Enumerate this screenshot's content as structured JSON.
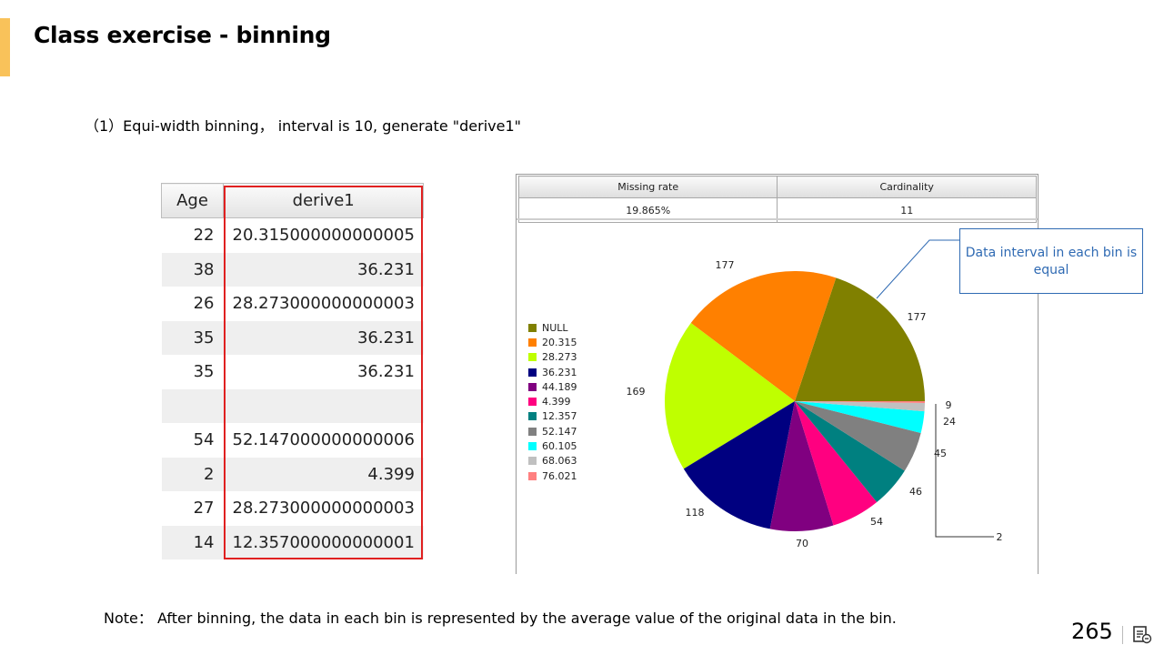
{
  "slide": {
    "title": "Class exercise - binning",
    "instruction": "（1）Equi-width binning，  interval is 10, generate \"derive1\"",
    "note": "Note：  After binning, the data in each bin is represented by the average value of the original data in the bin.",
    "page_number": "265",
    "accent_color": "#f9c25a"
  },
  "table": {
    "headers": [
      "Age",
      "derive1"
    ],
    "rows": [
      [
        "22",
        "20.315000000000005"
      ],
      [
        "38",
        "36.231"
      ],
      [
        "26",
        "28.273000000000003"
      ],
      [
        "35",
        "36.231"
      ],
      [
        "35",
        "36.231"
      ],
      [
        "",
        ""
      ],
      [
        "54",
        "52.147000000000006"
      ],
      [
        "2",
        "4.399"
      ],
      [
        "27",
        "28.273000000000003"
      ],
      [
        "14",
        "12.357000000000001"
      ]
    ],
    "highlight_color": "#e02020"
  },
  "stats": {
    "headers": [
      "Missing rate",
      "Cardinality"
    ],
    "values": [
      "19.865%",
      "11"
    ]
  },
  "callout": {
    "text": "Data interval in each bin is equal",
    "color": "#2f6ab3"
  },
  "chart_data": {
    "type": "pie",
    "categories": [
      "NULL",
      "20.315",
      "28.273",
      "36.231",
      "44.189",
      "4.399",
      "12.357",
      "52.147",
      "60.105",
      "68.063",
      "76.021"
    ],
    "values": [
      177,
      177,
      169,
      118,
      70,
      54,
      46,
      45,
      24,
      9,
      2
    ],
    "colors": [
      "#808000",
      "#ff8000",
      "#bfff00",
      "#000080",
      "#800080",
      "#ff0080",
      "#008080",
      "#808080",
      "#00ffff",
      "#c0c0c0",
      "#ff8080"
    ],
    "legend_position": "left"
  }
}
